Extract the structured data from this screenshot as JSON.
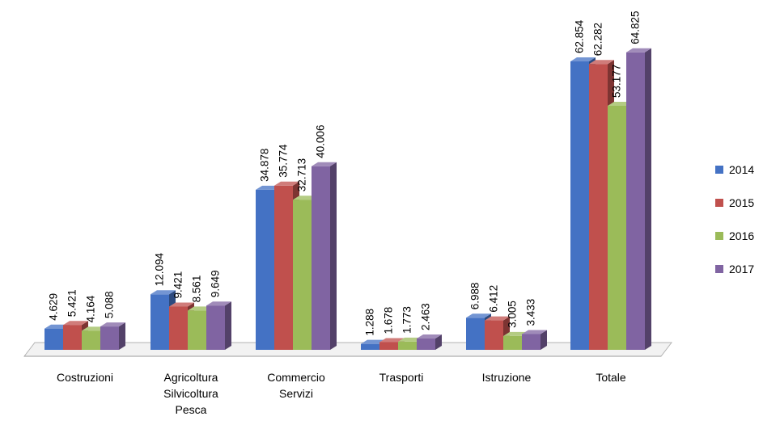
{
  "chart_data": {
    "type": "bar",
    "style": "3d-clustered-column",
    "categories": [
      [
        "Costruzioni"
      ],
      [
        "Agricoltura",
        "Silvicoltura",
        "Pesca"
      ],
      [
        "Commercio",
        "Servizi"
      ],
      [
        "Trasporti"
      ],
      [
        "Istruzione"
      ],
      [
        "Totale"
      ]
    ],
    "series": [
      {
        "name": "2014",
        "color": "#4472C4",
        "values": [
          4629,
          12094,
          34878,
          1288,
          6988,
          62854
        ],
        "labels": [
          "4.629",
          "12.094",
          "34.878",
          "1.288",
          "6.988",
          "62.854"
        ]
      },
      {
        "name": "2015",
        "color": "#C0504D",
        "values": [
          5421,
          9421,
          35774,
          1678,
          6412,
          62282
        ],
        "labels": [
          "5.421",
          "9.421",
          "35.774",
          "1.678",
          "6.412",
          "62.282"
        ]
      },
      {
        "name": "2016",
        "color": "#9BBB59",
        "values": [
          4164,
          8561,
          32713,
          1773,
          3005,
          53177
        ],
        "labels": [
          "4.164",
          "8.561",
          "32.713",
          "1.773",
          "3.005",
          "53.177"
        ]
      },
      {
        "name": "2017",
        "color": "#8064A2",
        "values": [
          5088,
          9649,
          40006,
          2463,
          3433,
          64825
        ],
        "labels": [
          "5.088",
          "9.649",
          "40.006",
          "2.463",
          "3.433",
          "64.825"
        ]
      }
    ],
    "ylim": [
      0,
      70000
    ],
    "grid": false,
    "legend_position": "right",
    "title": "",
    "xlabel": "",
    "ylabel": ""
  }
}
